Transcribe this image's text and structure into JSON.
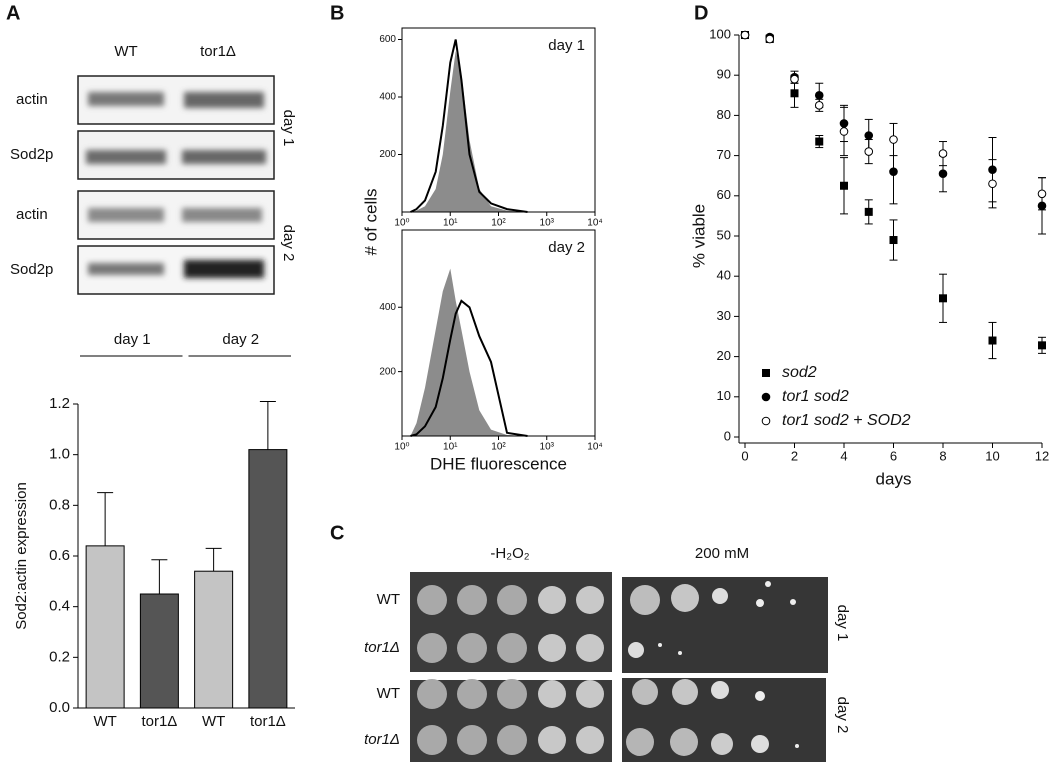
{
  "panel_labels": [
    "A",
    "B",
    "C",
    "D"
  ],
  "blot": {
    "columns": [
      "WT",
      "tor1Δ"
    ],
    "rows": [
      "actin",
      "Sod2p",
      "actin",
      "Sod2p"
    ],
    "days": [
      "day 1",
      "day 2"
    ]
  },
  "chart_data": [
    {
      "type": "bar",
      "ylabel": "Sod2:actin expression",
      "groups": [
        "day 1",
        "day 2"
      ],
      "categories": [
        "WT",
        "tor1Δ",
        "WT",
        "tor1Δ"
      ],
      "values": [
        0.64,
        0.45,
        0.54,
        1.02
      ],
      "errors": [
        0.21,
        0.135,
        0.09,
        0.19
      ],
      "colors": [
        "#c4c4c4",
        "#555555",
        "#c4c4c4",
        "#555555"
      ],
      "ylim": [
        0,
        1.2
      ],
      "yticks": [
        {
          "value": 0,
          "label": "0.0"
        },
        0.2,
        0.4,
        0.6,
        0.8,
        {
          "value": 1,
          "label": "1.0"
        },
        1.2
      ]
    },
    {
      "type": "line",
      "annotation": "day 1",
      "ylabel": "# of cells",
      "log_x": true,
      "x": [
        1.5,
        2,
        3,
        5,
        7,
        10,
        13,
        17,
        25,
        40,
        70,
        150,
        400
      ],
      "series": [
        {
          "color": "#8c8c8c",
          "filled": true,
          "values": [
            0,
            5,
            20,
            80,
            200,
            420,
            560,
            480,
            250,
            80,
            20,
            5,
            0
          ]
        },
        {
          "color": "#000000",
          "filled": false,
          "values": [
            0,
            10,
            40,
            140,
            300,
            520,
            600,
            460,
            200,
            70,
            30,
            10,
            0
          ]
        }
      ],
      "xlim": [
        1,
        10000
      ],
      "xticks": [
        {
          "value": 1,
          "label": "10⁰"
        },
        {
          "value": 10,
          "label": "10¹"
        },
        {
          "value": 100,
          "label": "10²"
        },
        {
          "value": 1000,
          "label": "10³"
        },
        {
          "value": 10000,
          "label": "10⁴"
        }
      ],
      "ylim": [
        0,
        640
      ],
      "yticks": [
        200,
        400,
        600
      ]
    },
    {
      "type": "line",
      "annotation": "day 2",
      "xlabel": "DHE fluorescence",
      "log_x": true,
      "x": [
        1.5,
        2,
        3,
        5,
        7,
        10,
        13,
        17,
        25,
        40,
        70,
        150,
        400
      ],
      "series": [
        {
          "color": "#8c8c8c",
          "filled": true,
          "values": [
            0,
            40,
            150,
            330,
            450,
            520,
            420,
            330,
            200,
            80,
            20,
            3,
            0
          ]
        },
        {
          "color": "#000000",
          "filled": false,
          "values": [
            0,
            5,
            30,
            90,
            180,
            300,
            380,
            420,
            400,
            310,
            230,
            10,
            0
          ]
        }
      ],
      "xlim": [
        1,
        10000
      ],
      "xticks": [
        {
          "value": 1,
          "label": "10⁰"
        },
        {
          "value": 10,
          "label": "10¹"
        },
        {
          "value": 100,
          "label": "10²"
        },
        {
          "value": 1000,
          "label": "10³"
        },
        {
          "value": 10000,
          "label": "10⁴"
        }
      ],
      "ylim": [
        0,
        640
      ],
      "yticks": [
        200,
        400
      ]
    },
    {
      "type": "scatter",
      "xlabel": "days",
      "ylabel": "% viable",
      "legend": "lower left",
      "x": [
        0,
        1,
        2,
        3,
        4,
        5,
        6,
        8,
        10,
        12
      ],
      "series": [
        {
          "name": "sod2",
          "marker": "square",
          "color": "#000000",
          "values": [
            100,
            99,
            85.5,
            73.5,
            62.5,
            56,
            49,
            34.5,
            24,
            22.8
          ],
          "errors": [
            0,
            0.5,
            3.5,
            1.5,
            7,
            3,
            5,
            6,
            4.5,
            2
          ]
        },
        {
          "name": "tor1 sod2",
          "marker": "circle",
          "color": "#000000",
          "values": [
            100,
            99.5,
            89.5,
            85,
            78,
            75,
            66,
            65.5,
            66.5,
            57.5
          ],
          "errors": [
            0,
            0.5,
            1.5,
            3,
            4.5,
            4,
            8,
            4.5,
            8,
            7
          ]
        },
        {
          "name": "tor1 sod2 + SOD2",
          "marker": "open-circle",
          "color": "#000000",
          "values": [
            100,
            99,
            89,
            82.5,
            76,
            71,
            74,
            70.5,
            63,
            60.5
          ],
          "errors": [
            0,
            0.5,
            1,
            1.5,
            6,
            3,
            4,
            3,
            6,
            4
          ]
        }
      ],
      "xlim": [
        0,
        12
      ],
      "xticks": [
        0,
        2,
        4,
        6,
        8,
        10,
        12
      ],
      "ylim": [
        0,
        100
      ],
      "yticks": [
        0,
        10,
        20,
        30,
        40,
        50,
        60,
        70,
        80,
        90,
        100
      ]
    }
  ],
  "plates": {
    "columns": [
      "-H₂O₂",
      "200 mM"
    ],
    "rows": [
      "WT",
      "tor1Δ",
      "WT",
      "tor1Δ"
    ],
    "days": [
      "day 1",
      "day 2"
    ]
  }
}
